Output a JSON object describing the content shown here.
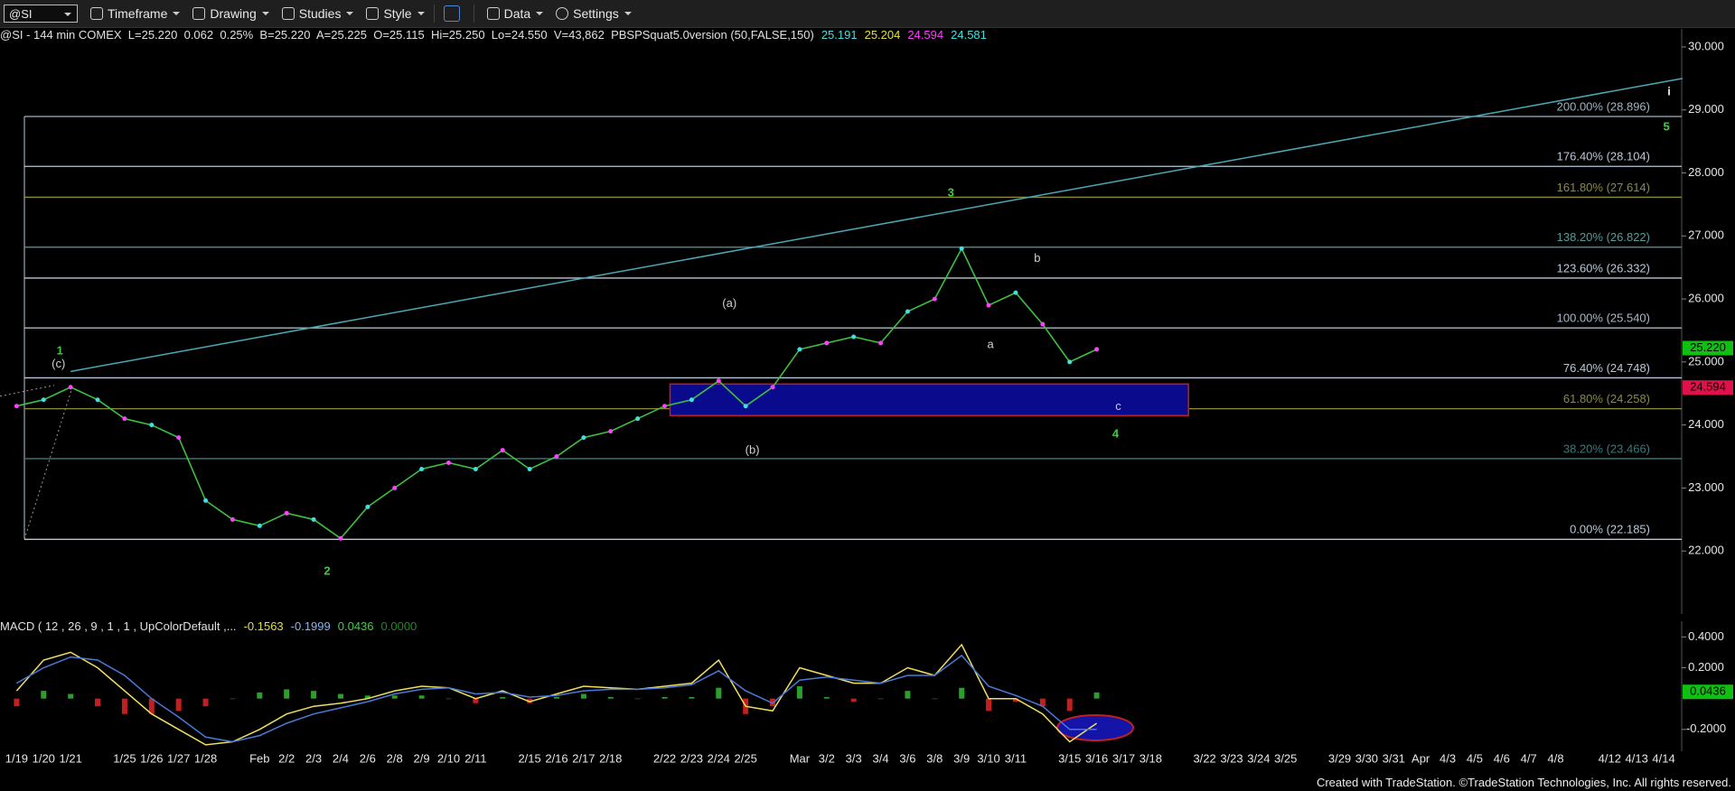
{
  "toolbar": {
    "symbol": "@SI",
    "menus": [
      "Timeframe",
      "Drawing",
      "Studies",
      "Style",
      "Data",
      "Settings"
    ]
  },
  "footer": "Created with TradeStation. ©TradeStation Technologies, Inc. All rights reserved.",
  "chart_data": [
    {
      "type": "line",
      "title": "@SI - 144 min COMEX  L=25.220  0.062  0.25%  B=25.220  A=25.225  O=25.115  Hi=25.250  Lo=24.550  V=43,862  PBSPSquat5.0version (50,FALSE,150)",
      "indicator_values": [
        {
          "value": 25.191,
          "color": "#40e0e0"
        },
        {
          "value": 25.204,
          "color": "#e0e040"
        },
        {
          "value": 24.594,
          "color": "#ff40ff"
        },
        {
          "value": 24.581,
          "color": "#40e0e0"
        }
      ],
      "color": "#3fbf3f",
      "values": [
        24.3,
        24.4,
        24.6,
        24.4,
        24.1,
        24.0,
        23.8,
        22.8,
        22.5,
        22.4,
        22.6,
        22.5,
        22.2,
        22.7,
        23.0,
        23.3,
        23.4,
        23.3,
        23.6,
        23.3,
        23.5,
        23.8,
        23.9,
        24.1,
        24.3,
        24.4,
        24.7,
        24.3,
        24.6,
        25.2,
        25.3,
        25.4,
        25.3,
        25.8,
        26.0,
        26.8,
        25.9,
        26.1,
        25.6,
        25.0,
        25.2,
        null,
        null,
        null,
        null,
        null,
        null,
        null,
        null,
        null,
        null,
        null,
        null,
        null,
        null,
        null,
        null,
        null,
        null,
        null,
        null,
        null
      ],
      "ylim": [
        21,
        30.2
      ],
      "yticks": [
        {
          "value": 22,
          "label": "22.000"
        },
        {
          "value": 23,
          "label": "23.000"
        },
        {
          "value": 24,
          "label": "24.000"
        },
        {
          "value": 25,
          "label": "25.000"
        },
        {
          "value": 26,
          "label": "26.000"
        },
        {
          "value": 27,
          "label": "27.000"
        },
        {
          "value": 28,
          "label": "28.000"
        },
        {
          "value": 29,
          "label": "29.000"
        },
        {
          "value": 30,
          "label": "30.000"
        }
      ],
      "levels": [
        {
          "label": "200.00% (28.896)",
          "value": 28.896,
          "color": "#9fb3c0"
        },
        {
          "label": "176.40% (28.104)",
          "value": 28.104,
          "color": "#b8c8d8"
        },
        {
          "label": "161.80% (27.614)",
          "value": 27.614,
          "color": "#8c8c3c"
        },
        {
          "label": "138.20% (26.822)",
          "value": 26.822,
          "color": "#5a9a9a"
        },
        {
          "label": "123.60% (26.332)",
          "value": 26.332,
          "color": "#b8c8d8"
        },
        {
          "label": "100.00% (25.540)",
          "value": 25.54,
          "color": "#a8b8c8"
        },
        {
          "label": "76.40% (24.748)",
          "value": 24.748,
          "color": "#b8c8d8"
        },
        {
          "label": "61.80% (24.258)",
          "value": 24.258,
          "color": "#8c8c3c"
        },
        {
          "label": "38.20% (23.466)",
          "value": 23.466,
          "color": "#3a7a7a"
        },
        {
          "label": "0.00% (22.185)",
          "value": 22.185,
          "color": "#b8c8d8"
        }
      ],
      "trendline": {
        "x": [
          2,
          61.7
        ],
        "values": [
          24.85,
          29.5
        ],
        "color": "#4aa8b8"
      },
      "zone": {
        "x": [
          24.2,
          43.4
        ],
        "values": [
          24.65,
          24.15
        ],
        "color": "#0a0a8c",
        "border": "#c02020"
      },
      "annotations": [
        {
          "text": "1",
          "x": 1.6,
          "y": 25.17,
          "color": "#3ccc3c"
        },
        {
          "text": "(c)",
          "x": 1.55,
          "y": 24.96,
          "color": "#d0d0d0"
        },
        {
          "text": "2",
          "x": 11.5,
          "y": 21.67,
          "color": "#3ccc3c"
        },
        {
          "text": "(a)",
          "x": 26.4,
          "y": 25.92,
          "color": "#d0d0d0"
        },
        {
          "text": "(b)",
          "x": 27.25,
          "y": 23.59,
          "color": "#d0d0d0"
        },
        {
          "text": "3",
          "x": 34.6,
          "y": 27.68,
          "color": "#3ccc3c"
        },
        {
          "text": "a",
          "x": 36.07,
          "y": 25.27,
          "color": "#d0d0d0"
        },
        {
          "text": "b",
          "x": 37.8,
          "y": 26.64,
          "color": "#d0d0d0"
        },
        {
          "text": "c",
          "x": 40.8,
          "y": 24.29,
          "color": "#d0d0d0"
        },
        {
          "text": "4",
          "x": 40.7,
          "y": 23.85,
          "color": "#3ccc3c"
        },
        {
          "text": "5",
          "x": 61.1,
          "y": 28.72,
          "color": "#3ccc3c"
        },
        {
          "text": "i",
          "x": 61.2,
          "y": 29.28,
          "color": "#e8e8e8"
        }
      ],
      "last_price": {
        "value": 25.22,
        "label": "25.220",
        "color": "#10c010"
      },
      "marker_price": {
        "value": 24.594,
        "label": "24.594",
        "color": "#e0104a"
      }
    },
    {
      "type": "macd",
      "title": "MACD ( 12 , 26 , 9 , 1 , 1 , UpColorDefault ,...",
      "readouts": [
        {
          "value": -0.1563,
          "color": "#e0e040"
        },
        {
          "value": -0.1999,
          "color": "#8ab4f0"
        },
        {
          "value": 0.0436,
          "color": "#40d040"
        },
        {
          "value": 0,
          "label": "0.0000",
          "color": "#1f8a1f"
        }
      ],
      "categories": [
        "1/19",
        "1/20",
        "1/21",
        null,
        "1/25",
        "1/26",
        "1/27",
        "1/28",
        null,
        "Feb",
        "2/2",
        "2/3",
        "2/4",
        "2/6",
        "2/8",
        "2/9",
        "2/10",
        "2/11",
        null,
        "2/15",
        "2/16",
        "2/17",
        "2/18",
        null,
        "2/22",
        "2/23",
        "2/24",
        "2/25",
        null,
        "Mar",
        "3/2",
        "3/3",
        "3/4",
        "3/6",
        "3/8",
        "3/9",
        "3/10",
        "3/11",
        null,
        "3/15",
        "3/16",
        "3/17",
        "3/18",
        null,
        "3/22",
        "3/23",
        "3/24",
        "3/25",
        null,
        "3/29",
        "3/30",
        "3/31",
        "Apr",
        "4/3",
        "4/5",
        "4/6",
        "4/7",
        "4/8",
        null,
        "4/12",
        "4/13",
        "4/14"
      ],
      "series": [
        {
          "name": "MACD",
          "color": "#f0e060",
          "values": [
            0.05,
            0.25,
            0.3,
            0.2,
            0.05,
            -0.1,
            -0.2,
            -0.3,
            -0.28,
            -0.2,
            -0.1,
            -0.05,
            -0.03,
            0.0,
            0.05,
            0.08,
            0.07,
            0.0,
            0.05,
            -0.02,
            0.03,
            0.08,
            0.07,
            0.06,
            0.08,
            0.1,
            0.25,
            -0.05,
            -0.08,
            0.2,
            0.15,
            0.1,
            0.1,
            0.2,
            0.15,
            0.35,
            0.0,
            0.0,
            -0.1,
            -0.28,
            -0.16,
            null,
            null,
            null,
            null,
            null,
            null,
            null,
            null,
            null,
            null,
            null,
            null,
            null,
            null,
            null,
            null,
            null,
            null,
            null,
            null,
            null
          ]
        },
        {
          "name": "Signal",
          "color": "#4a7ad8",
          "values": [
            0.1,
            0.2,
            0.27,
            0.25,
            0.15,
            0.0,
            -0.12,
            -0.25,
            -0.28,
            -0.24,
            -0.16,
            -0.1,
            -0.06,
            -0.02,
            0.03,
            0.06,
            0.07,
            0.03,
            0.04,
            0.01,
            0.02,
            0.05,
            0.06,
            0.06,
            0.07,
            0.09,
            0.18,
            0.05,
            -0.03,
            0.12,
            0.14,
            0.12,
            0.1,
            0.15,
            0.15,
            0.28,
            0.08,
            0.02,
            -0.05,
            -0.2,
            -0.2,
            null,
            null,
            null,
            null,
            null,
            null,
            null,
            null,
            null,
            null,
            null,
            null,
            null,
            null,
            null,
            null,
            null,
            null,
            null,
            null,
            null
          ]
        }
      ],
      "histogram": [
        -0.05,
        0.05,
        0.03,
        -0.05,
        -0.1,
        -0.1,
        -0.08,
        -0.05,
        0.0,
        0.04,
        0.06,
        0.05,
        0.03,
        0.02,
        0.02,
        0.02,
        0.0,
        -0.03,
        0.01,
        -0.03,
        0.01,
        0.03,
        0.01,
        0.0,
        0.01,
        0.01,
        0.07,
        -0.1,
        -0.05,
        0.08,
        0.01,
        -0.02,
        0.0,
        0.05,
        0.0,
        0.07,
        -0.08,
        -0.02,
        -0.05,
        -0.08,
        0.04,
        null,
        null,
        null,
        null,
        null,
        null,
        null,
        null,
        null,
        null,
        null,
        null,
        null,
        null,
        null,
        null,
        null,
        null,
        null,
        null,
        null
      ],
      "up_color": "#2aa02a",
      "down_color": "#c02020",
      "ylim": [
        -0.33,
        0.49
      ],
      "yticks": [
        {
          "value": -0.2,
          "label": "-0.2000"
        },
        {
          "value": 0.2,
          "label": "0.2000"
        },
        {
          "value": 0.4,
          "label": "0.4000"
        }
      ],
      "last_value": 0.0436,
      "last_color": "#10c010"
    }
  ]
}
